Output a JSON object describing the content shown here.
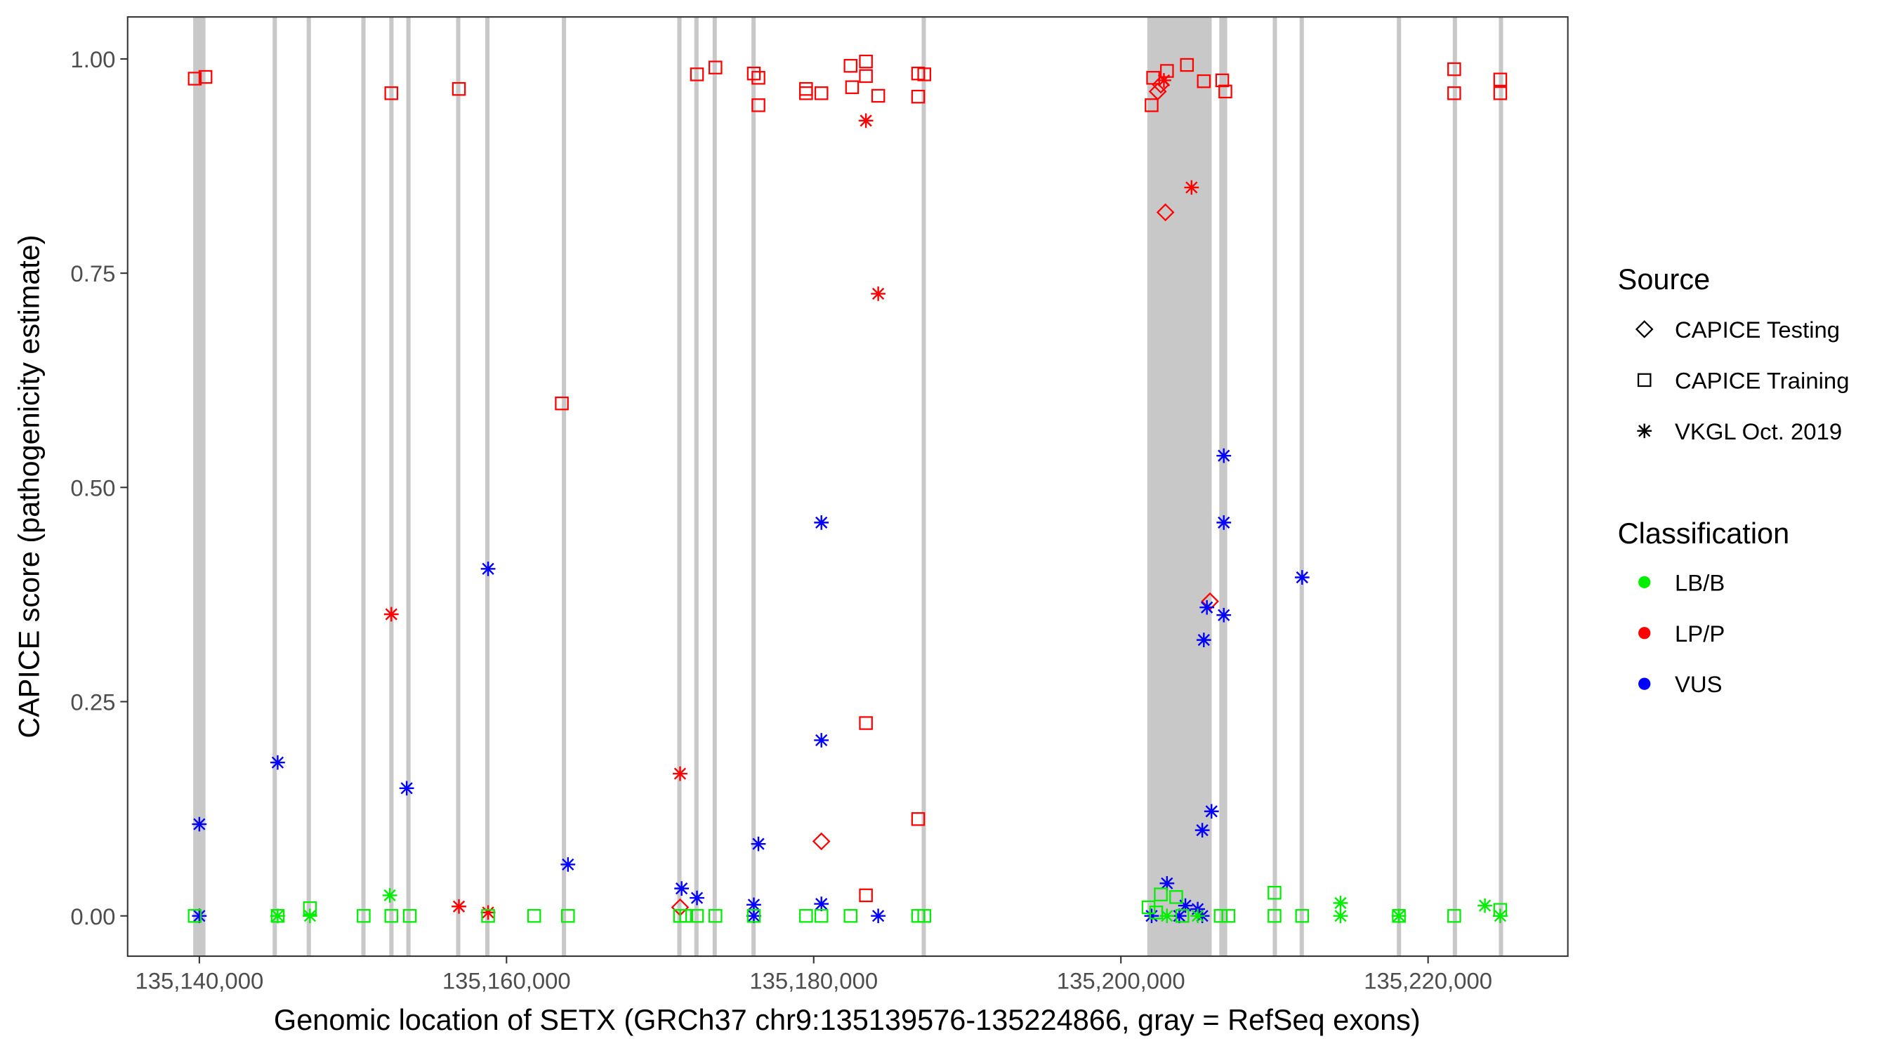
{
  "chart_data": {
    "type": "scatter",
    "title": "",
    "xlabel": "Genomic location of SETX (GRCh37 chr9:135139576-135224866, gray = RefSeq exons)",
    "ylabel": "CAPICE score (pathogenicity estimate)",
    "xlim": [
      135135330,
      135229100
    ],
    "ylim": [
      -0.047,
      1.049
    ],
    "x_ticks": [
      135140000,
      135160000,
      135180000,
      135200000,
      135220000
    ],
    "x_tick_labels": [
      "135,140,000",
      "135,160,000",
      "135,180,000",
      "135,200,000",
      "135,220,000"
    ],
    "y_ticks": [
      0,
      0.25,
      0.5,
      0.75,
      1.0
    ],
    "y_tick_labels": [
      "0.00",
      "0.25",
      "0.50",
      "0.75",
      "1.00"
    ],
    "grid": false,
    "legend_placement": "right",
    "legend": {
      "source_title": "Source",
      "sources": [
        {
          "key": "testing",
          "label": "CAPICE Testing",
          "shape": "diamond"
        },
        {
          "key": "training",
          "label": "CAPICE Training",
          "shape": "square"
        },
        {
          "key": "vkgl",
          "label": "VKGL Oct. 2019",
          "shape": "asterisk"
        }
      ],
      "class_title": "Classification",
      "classes": [
        {
          "key": "LB/B",
          "label": "LB/B",
          "color": "#00ee00"
        },
        {
          "key": "LP/P",
          "label": "LP/P",
          "color": "#ff0000"
        },
        {
          "key": "VUS",
          "label": "VUS",
          "color": "#0000ff"
        }
      ]
    },
    "exons": [
      [
        135139600,
        135140400
      ],
      [
        135144880,
        135144940
      ],
      [
        135147100,
        135147150
      ],
      [
        135150660,
        135150710
      ],
      [
        135152480,
        135152530
      ],
      [
        135153590,
        135153640
      ],
      [
        135156830,
        135156880
      ],
      [
        135158730,
        135158780
      ],
      [
        135163700,
        135163780
      ],
      [
        135171230,
        135171280
      ],
      [
        135172340,
        135172390
      ],
      [
        135173530,
        135173580
      ],
      [
        135176060,
        135176110
      ],
      [
        135187140,
        135187190
      ],
      [
        135201720,
        135205910
      ],
      [
        135206520,
        135206570
      ],
      [
        135206760,
        135206810
      ],
      [
        135210000,
        135210050
      ],
      [
        135211750,
        135211800
      ],
      [
        135218080,
        135218130
      ],
      [
        135221720,
        135221770
      ],
      [
        135224720,
        135224770
      ]
    ],
    "points": [
      [
        135139700,
        0.977,
        "training",
        "LP/P"
      ],
      [
        135140400,
        0.979,
        "training",
        "LP/P"
      ],
      [
        135152500,
        0.96,
        "training",
        "LP/P"
      ],
      [
        135156900,
        0.965,
        "training",
        "LP/P"
      ],
      [
        135172400,
        0.982,
        "training",
        "LP/P"
      ],
      [
        135173600,
        0.99,
        "training",
        "LP/P"
      ],
      [
        135176100,
        0.983,
        "training",
        "LP/P"
      ],
      [
        135176400,
        0.978,
        "training",
        "LP/P"
      ],
      [
        135176400,
        0.946,
        "training",
        "LP/P"
      ],
      [
        135179500,
        0.965,
        "training",
        "LP/P"
      ],
      [
        135179500,
        0.96,
        "training",
        "LP/P"
      ],
      [
        135180500,
        0.96,
        "training",
        "LP/P"
      ],
      [
        135182400,
        0.992,
        "training",
        "LP/P"
      ],
      [
        135182500,
        0.967,
        "training",
        "LP/P"
      ],
      [
        135183400,
        0.997,
        "training",
        "LP/P"
      ],
      [
        135183400,
        0.98,
        "training",
        "LP/P"
      ],
      [
        135184200,
        0.957,
        "training",
        "LP/P"
      ],
      [
        135186800,
        0.983,
        "training",
        "LP/P"
      ],
      [
        135186800,
        0.956,
        "training",
        "LP/P"
      ],
      [
        135187200,
        0.982,
        "training",
        "LP/P"
      ],
      [
        135202100,
        0.978,
        "training",
        "LP/P"
      ],
      [
        135202000,
        0.946,
        "training",
        "LP/P"
      ],
      [
        135203000,
        0.986,
        "training",
        "LP/P"
      ],
      [
        135204300,
        0.993,
        "training",
        "LP/P"
      ],
      [
        135205400,
        0.974,
        "training",
        "LP/P"
      ],
      [
        135206600,
        0.975,
        "training",
        "LP/P"
      ],
      [
        135206800,
        0.962,
        "training",
        "LP/P"
      ],
      [
        135221700,
        0.988,
        "training",
        "LP/P"
      ],
      [
        135221700,
        0.96,
        "training",
        "LP/P"
      ],
      [
        135224700,
        0.976,
        "training",
        "LP/P"
      ],
      [
        135224700,
        0.96,
        "training",
        "LP/P"
      ],
      [
        135163600,
        0.598,
        "training",
        "LP/P"
      ],
      [
        135183400,
        0.225,
        "training",
        "LP/P"
      ],
      [
        135186800,
        0.113,
        "training",
        "LP/P"
      ],
      [
        135183400,
        0.024,
        "training",
        "LP/P"
      ],
      [
        135202400,
        0.962,
        "testing",
        "LP/P"
      ],
      [
        135202900,
        0.821,
        "testing",
        "LP/P"
      ],
      [
        135205800,
        0.367,
        "testing",
        "LP/P"
      ],
      [
        135180500,
        0.087,
        "testing",
        "LP/P"
      ],
      [
        135171300,
        0.01,
        "testing",
        "LP/P"
      ],
      [
        135202600,
        0.97,
        "testing",
        "LP/P"
      ],
      [
        135183400,
        0.928,
        "vkgl",
        "LP/P"
      ],
      [
        135204600,
        0.85,
        "vkgl",
        "LP/P"
      ],
      [
        135184200,
        0.726,
        "vkgl",
        "LP/P"
      ],
      [
        135152500,
        0.352,
        "vkgl",
        "LP/P"
      ],
      [
        135171300,
        0.166,
        "vkgl",
        "LP/P"
      ],
      [
        135156900,
        0.011,
        "vkgl",
        "LP/P"
      ],
      [
        135158800,
        0.004,
        "vkgl",
        "LP/P"
      ],
      [
        135202800,
        0.975,
        "vkgl",
        "LP/P"
      ],
      [
        135140000,
        0.107,
        "vkgl",
        "VUS"
      ],
      [
        135145100,
        0.179,
        "vkgl",
        "VUS"
      ],
      [
        135153500,
        0.149,
        "vkgl",
        "VUS"
      ],
      [
        135158800,
        0.405,
        "vkgl",
        "VUS"
      ],
      [
        135164000,
        0.06,
        "vkgl",
        "VUS"
      ],
      [
        135180500,
        0.459,
        "vkgl",
        "VUS"
      ],
      [
        135180500,
        0.205,
        "vkgl",
        "VUS"
      ],
      [
        135176400,
        0.084,
        "vkgl",
        "VUS"
      ],
      [
        135171400,
        0.032,
        "vkgl",
        "VUS"
      ],
      [
        135172400,
        0.021,
        "vkgl",
        "VUS"
      ],
      [
        135176100,
        0.013,
        "vkgl",
        "VUS"
      ],
      [
        135180500,
        0.014,
        "vkgl",
        "VUS"
      ],
      [
        135206700,
        0.537,
        "vkgl",
        "VUS"
      ],
      [
        135206700,
        0.459,
        "vkgl",
        "VUS"
      ],
      [
        135211800,
        0.395,
        "vkgl",
        "VUS"
      ],
      [
        135205600,
        0.36,
        "vkgl",
        "VUS"
      ],
      [
        135206700,
        0.351,
        "vkgl",
        "VUS"
      ],
      [
        135205400,
        0.322,
        "vkgl",
        "VUS"
      ],
      [
        135205900,
        0.122,
        "vkgl",
        "VUS"
      ],
      [
        135205300,
        0.1,
        "vkgl",
        "VUS"
      ],
      [
        135203000,
        0.038,
        "vkgl",
        "VUS"
      ],
      [
        135204200,
        0.012,
        "vkgl",
        "VUS"
      ],
      [
        135205000,
        0.008,
        "vkgl",
        "VUS"
      ],
      [
        135140000,
        0.0,
        "vkgl",
        "VUS"
      ],
      [
        135176100,
        0.0,
        "vkgl",
        "VUS"
      ],
      [
        135184200,
        0.0,
        "vkgl",
        "VUS"
      ],
      [
        135202000,
        0.0,
        "vkgl",
        "VUS"
      ],
      [
        135203800,
        0.0,
        "vkgl",
        "VUS"
      ],
      [
        135205300,
        0.0,
        "vkgl",
        "VUS"
      ],
      [
        135139700,
        0.0,
        "training",
        "LB/B"
      ],
      [
        135145100,
        0.0,
        "training",
        "LB/B"
      ],
      [
        135147200,
        0.009,
        "training",
        "LB/B"
      ],
      [
        135150700,
        0.0,
        "training",
        "LB/B"
      ],
      [
        135152500,
        0.0,
        "training",
        "LB/B"
      ],
      [
        135153700,
        0.0,
        "training",
        "LB/B"
      ],
      [
        135158800,
        0.0,
        "training",
        "LB/B"
      ],
      [
        135161800,
        0.0,
        "training",
        "LB/B"
      ],
      [
        135164000,
        0.0,
        "training",
        "LB/B"
      ],
      [
        135171300,
        0.0,
        "training",
        "LB/B"
      ],
      [
        135171700,
        0.0,
        "training",
        "LB/B"
      ],
      [
        135172400,
        0.0,
        "training",
        "LB/B"
      ],
      [
        135173600,
        0.0,
        "training",
        "LB/B"
      ],
      [
        135176100,
        0.0,
        "training",
        "LB/B"
      ],
      [
        135179500,
        0.0,
        "training",
        "LB/B"
      ],
      [
        135180500,
        0.0,
        "training",
        "LB/B"
      ],
      [
        135182400,
        0.0,
        "training",
        "LB/B"
      ],
      [
        135186800,
        0.0,
        "training",
        "LB/B"
      ],
      [
        135187200,
        0.0,
        "training",
        "LB/B"
      ],
      [
        135201800,
        0.01,
        "training",
        "LB/B"
      ],
      [
        135202600,
        0.025,
        "training",
        "LB/B"
      ],
      [
        135203600,
        0.022,
        "training",
        "LB/B"
      ],
      [
        135206500,
        0.0,
        "training",
        "LB/B"
      ],
      [
        135210000,
        0.027,
        "training",
        "LB/B"
      ],
      [
        135210000,
        0.0,
        "training",
        "LB/B"
      ],
      [
        135211800,
        0.0,
        "training",
        "LB/B"
      ],
      [
        135218100,
        0.0,
        "training",
        "LB/B"
      ],
      [
        135221700,
        0.0,
        "training",
        "LB/B"
      ],
      [
        135224700,
        0.007,
        "training",
        "LB/B"
      ],
      [
        135202300,
        0.004,
        "training",
        "LB/B"
      ],
      [
        135204000,
        0.0,
        "training",
        "LB/B"
      ],
      [
        135207000,
        0.0,
        "training",
        "LB/B"
      ],
      [
        135152400,
        0.024,
        "vkgl",
        "LB/B"
      ],
      [
        135147200,
        0.0,
        "vkgl",
        "LB/B"
      ],
      [
        135214300,
        0.015,
        "vkgl",
        "LB/B"
      ],
      [
        135214300,
        0.0,
        "vkgl",
        "LB/B"
      ],
      [
        135223700,
        0.012,
        "vkgl",
        "LB/B"
      ],
      [
        135218100,
        0.0,
        "vkgl",
        "LB/B"
      ],
      [
        135145100,
        0.0,
        "vkgl",
        "LB/B"
      ],
      [
        135224700,
        0.0,
        "vkgl",
        "LB/B"
      ],
      [
        135203000,
        0.0,
        "vkgl",
        "LB/B"
      ],
      [
        135205000,
        0.0,
        "vkgl",
        "LB/B"
      ]
    ]
  }
}
